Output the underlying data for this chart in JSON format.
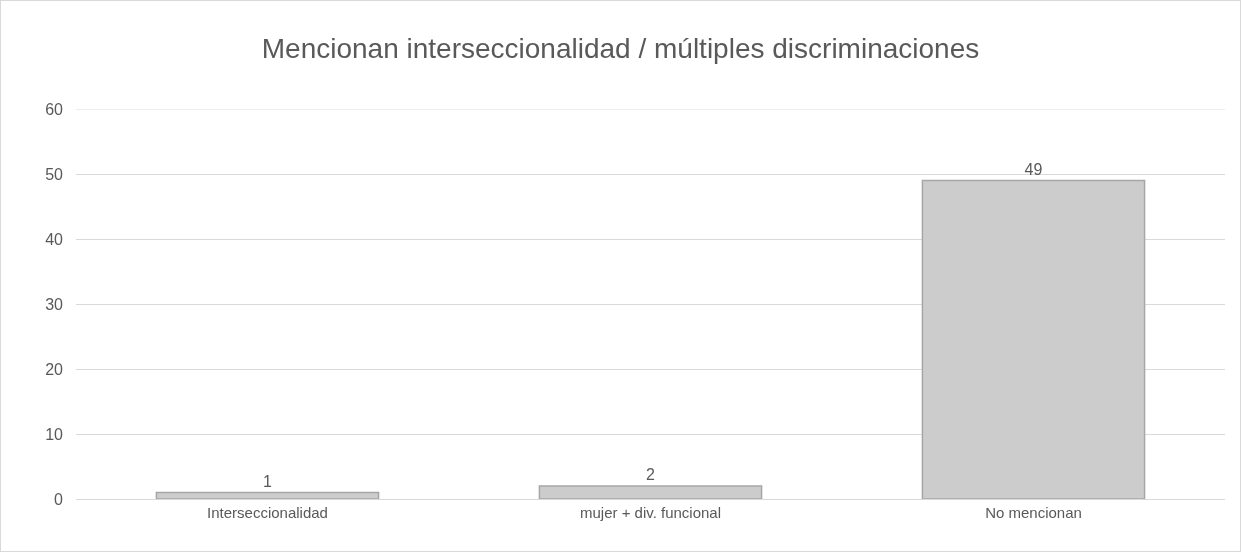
{
  "chart_data": {
    "type": "bar",
    "title": "Mencionan interseccionalidad / múltiples discriminaciones",
    "categories": [
      "Interseccionalidad",
      "mujer + div. funcional",
      "No mencionan"
    ],
    "values": [
      1,
      2,
      49
    ],
    "color": "#cccccc",
    "ylim": [
      0,
      60
    ],
    "yticks": [
      0,
      10,
      20,
      30,
      40,
      50,
      60
    ],
    "grid": "y",
    "data_labels": true
  }
}
